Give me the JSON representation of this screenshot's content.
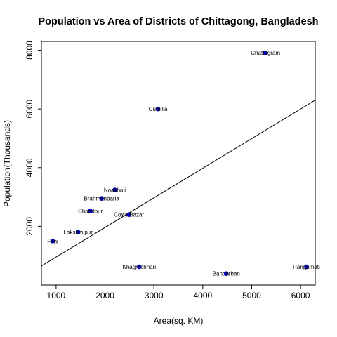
{
  "chart_data": {
    "type": "scatter",
    "title": "Population vs Area of Districts of Chittagong, Bangladesh",
    "xlabel": "Area(sq. KM)",
    "ylabel": "Population(Thousands)",
    "xlim": [
      700,
      6300
    ],
    "ylim": [
      0,
      8300
    ],
    "x_ticks": [
      1000,
      2000,
      3000,
      4000,
      5000,
      6000
    ],
    "y_ticks": [
      2000,
      4000,
      6000,
      8000
    ],
    "grid": false,
    "point_color": "#0000CD",
    "line_color": "#000000",
    "points": [
      {
        "label": "Chattogram",
        "x": 5283,
        "y": 7913
      },
      {
        "label": "Cumilla",
        "x": 3085,
        "y": 6000
      },
      {
        "label": "Noakhali",
        "x": 2200,
        "y": 3240
      },
      {
        "label": "Brahmanbaria",
        "x": 1930,
        "y": 2950
      },
      {
        "label": "Chandpur",
        "x": 1700,
        "y": 2520
      },
      {
        "label": "Cox's Bazar",
        "x": 2490,
        "y": 2400
      },
      {
        "label": "Lakshmipur",
        "x": 1450,
        "y": 1800
      },
      {
        "label": "Feni",
        "x": 930,
        "y": 1500
      },
      {
        "label": "Khagrachhari",
        "x": 2700,
        "y": 620
      },
      {
        "label": "Bandarban",
        "x": 4480,
        "y": 390
      },
      {
        "label": "Rangamati",
        "x": 6120,
        "y": 620
      }
    ],
    "fit_line": {
      "x": [
        700,
        6300
      ],
      "y": [
        650,
        6300
      ]
    }
  }
}
